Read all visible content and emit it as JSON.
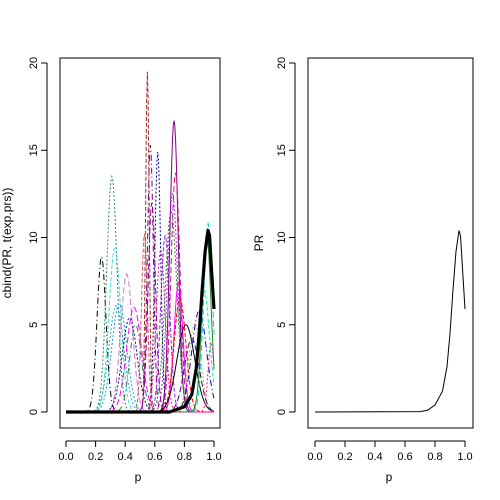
{
  "chart_data": [
    {
      "type": "line",
      "xlabel": "p",
      "ylabel": "cbind(PR, t(exp.prs))",
      "xlim": [
        0,
        1
      ],
      "ylim": [
        0,
        20
      ],
      "x_ticks": [
        "0.0",
        "0.2",
        "0.4",
        "0.6",
        "0.8",
        "1.0"
      ],
      "y_ticks": [
        "0",
        "5",
        "10",
        "15",
        "20"
      ],
      "grid": false,
      "legend": "none",
      "bold_series": {
        "x": [
          0,
          0.7,
          0.8,
          0.85,
          0.88,
          0.9,
          0.92,
          0.94,
          0.96,
          0.97,
          0.98,
          0.99,
          1.0
        ],
        "y": [
          0,
          0,
          0.3,
          1.0,
          2.5,
          4.5,
          7.0,
          9.2,
          10.4,
          10.1,
          8.6,
          7.2,
          5.9
        ]
      },
      "series_peaks": [
        {
          "color": "#000000",
          "dash": "6,3,1,3",
          "peak": 0.24,
          "sd": 0.03,
          "height": 8.9
        },
        {
          "color": "#2E8B57",
          "dash": "2,2",
          "peak": 0.31,
          "sd": 0.035,
          "height": 13.5
        },
        {
          "color": "#40E0D0",
          "dash": "4,2",
          "peak": 0.33,
          "sd": 0.04,
          "height": 9.4
        },
        {
          "color": "#20B2AA",
          "dash": "2,2",
          "peak": 0.34,
          "sd": 0.05,
          "height": 6.1
        },
        {
          "color": "#1E90FF",
          "dash": "2,2",
          "peak": 0.36,
          "sd": 0.05,
          "height": 6.2
        },
        {
          "color": "#DA70D6",
          "dash": "6,3",
          "peak": 0.41,
          "sd": 0.04,
          "height": 7.9
        },
        {
          "color": "#000080",
          "dash": "2,2",
          "peak": 0.43,
          "sd": 0.05,
          "height": 5.4
        },
        {
          "color": "#FF00FF",
          "dash": "6,3",
          "peak": 0.46,
          "sd": 0.05,
          "height": 6.0
        },
        {
          "color": "#2E8B57",
          "dash": "6,3,1,3",
          "peak": 0.47,
          "sd": 0.04,
          "height": 5.0
        },
        {
          "color": "#A52A2A",
          "dash": "4,2",
          "peak": 0.55,
          "sd": 0.012,
          "height": 19.5
        },
        {
          "color": "#CD5C5C",
          "dash": "4,2",
          "peak": 0.53,
          "sd": 0.02,
          "height": 10.2
        },
        {
          "color": "#800080",
          "dash": "6,3,1,3",
          "peak": 0.57,
          "sd": 0.02,
          "height": 15.3
        },
        {
          "color": "#00008B",
          "dash": "2,2",
          "peak": 0.62,
          "sd": 0.02,
          "height": 14.9
        },
        {
          "color": "#8B008B",
          "dash": "6,3",
          "peak": 0.58,
          "sd": 0.025,
          "height": 12.0
        },
        {
          "color": "#FF1493",
          "dash": "2,2",
          "peak": 0.64,
          "sd": 0.03,
          "height": 9.3
        },
        {
          "color": "#8A2BE2",
          "dash": "4,2",
          "peak": 0.67,
          "sd": 0.03,
          "height": 10.1
        },
        {
          "color": "#800080",
          "dash": "0",
          "peak": 0.73,
          "sd": 0.028,
          "height": 16.7
        },
        {
          "color": "#C71585",
          "dash": "6,3",
          "peak": 0.74,
          "sd": 0.03,
          "height": 13.7
        },
        {
          "color": "#A020F0",
          "dash": "2,2",
          "peak": 0.72,
          "sd": 0.035,
          "height": 12.5
        },
        {
          "color": "#228B22",
          "dash": "2,2",
          "peak": 0.71,
          "sd": 0.04,
          "height": 11.5
        },
        {
          "color": "#FF00FF",
          "dash": "0",
          "peak": 0.76,
          "sd": 0.03,
          "height": 7.4
        },
        {
          "color": "#FF0000",
          "dash": "4,2",
          "peak": 0.77,
          "sd": 0.04,
          "height": 6.5
        },
        {
          "color": "#000000",
          "dash": "0",
          "peak": 0.81,
          "sd": 0.06,
          "height": 5.0
        },
        {
          "color": "#0000CD",
          "dash": "6,3,1,3",
          "peak": 0.9,
          "sd": 0.05,
          "height": 5.8
        },
        {
          "color": "#9ACD32",
          "dash": "2,2",
          "peak": 0.87,
          "sd": 0.04,
          "height": 5.1
        },
        {
          "color": "#00CED1",
          "dash": "6,3",
          "peak": 0.96,
          "sd": 0.03,
          "height": 10.8
        },
        {
          "color": "#00FA9A",
          "dash": "4,2",
          "peak": 0.93,
          "sd": 0.04,
          "height": 7.1
        },
        {
          "color": "#228B22",
          "dash": "0",
          "peak": 0.95,
          "sd": 0.03,
          "height": 10.2
        },
        {
          "color": "#FF1493",
          "dash": "2,2",
          "peak": 0.98,
          "sd": 0.02,
          "height": 4.0
        },
        {
          "color": "#4B0082",
          "dash": "6,3",
          "peak": 0.85,
          "sd": 0.05,
          "height": 4.2
        }
      ]
    },
    {
      "type": "line",
      "xlabel": "p",
      "ylabel": "PR",
      "xlim": [
        0,
        1
      ],
      "ylim": [
        0,
        20
      ],
      "x_ticks": [
        "0.0",
        "0.2",
        "0.4",
        "0.6",
        "0.8",
        "1.0"
      ],
      "y_ticks": [
        "0",
        "5",
        "10",
        "15",
        "20"
      ],
      "grid": false,
      "legend": "none",
      "series": [
        {
          "x": [
            0,
            0.7,
            0.75,
            0.8,
            0.85,
            0.88,
            0.9,
            0.92,
            0.94,
            0.96,
            0.97,
            0.98,
            0.99,
            1.0
          ],
          "y": [
            0,
            0.02,
            0.1,
            0.4,
            1.2,
            2.6,
            4.5,
            7.0,
            9.2,
            10.4,
            10.1,
            8.7,
            7.3,
            5.9
          ]
        }
      ]
    }
  ]
}
